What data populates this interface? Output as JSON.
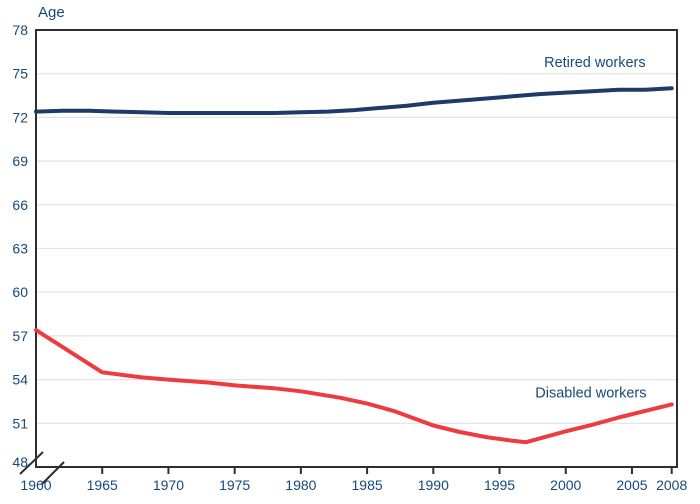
{
  "colors": {
    "text": "#17497a",
    "frame": "#2e2e2e",
    "grid": "#e3e3e3",
    "background": "#ffffff",
    "retired_line": "#1f3a68",
    "disabled_line": "#ee3b40"
  },
  "chart_data": {
    "type": "line",
    "title": "",
    "ylabel": "Age",
    "xlabel": "",
    "xlim": [
      1960,
      2008.4
    ],
    "ylim": [
      48,
      78
    ],
    "x_ticks": [
      1960,
      1965,
      1970,
      1975,
      1980,
      1985,
      1990,
      1995,
      2000,
      2005,
      2008
    ],
    "x_ticks_without_mark": [
      1960
    ],
    "y_ticks": [
      48,
      51,
      54,
      57,
      60,
      63,
      66,
      69,
      72,
      75,
      78
    ],
    "grid": "horizontal",
    "axis_break_at_origin": true,
    "legend_position": "inline-labels",
    "series": [
      {
        "name": "Retired workers",
        "color_key": "retired_line",
        "label_anchor": {
          "x": 2002.2,
          "y": 75.8
        },
        "points": [
          [
            1960,
            72.4
          ],
          [
            1962,
            72.45
          ],
          [
            1964,
            72.45
          ],
          [
            1966,
            72.4
          ],
          [
            1968,
            72.35
          ],
          [
            1970,
            72.3
          ],
          [
            1972,
            72.3
          ],
          [
            1974,
            72.3
          ],
          [
            1976,
            72.3
          ],
          [
            1978,
            72.3
          ],
          [
            1980,
            72.35
          ],
          [
            1982,
            72.4
          ],
          [
            1984,
            72.5
          ],
          [
            1986,
            72.65
          ],
          [
            1988,
            72.8
          ],
          [
            1990,
            73.0
          ],
          [
            1992,
            73.15
          ],
          [
            1994,
            73.3
          ],
          [
            1996,
            73.45
          ],
          [
            1998,
            73.6
          ],
          [
            2000,
            73.7
          ],
          [
            2002,
            73.8
          ],
          [
            2004,
            73.9
          ],
          [
            2006,
            73.9
          ],
          [
            2007,
            73.95
          ],
          [
            2008,
            74.0
          ]
        ]
      },
      {
        "name": "Disabled workers",
        "color_key": "disabled_line",
        "label_anchor": {
          "x": 2001.9,
          "y": 53.1
        },
        "points": [
          [
            1960,
            57.4
          ],
          [
            1965,
            54.5
          ],
          [
            1968,
            54.15
          ],
          [
            1970,
            54.0
          ],
          [
            1973,
            53.8
          ],
          [
            1975,
            53.6
          ],
          [
            1978,
            53.4
          ],
          [
            1980,
            53.2
          ],
          [
            1983,
            52.75
          ],
          [
            1985,
            52.35
          ],
          [
            1987,
            51.85
          ],
          [
            1990,
            50.85
          ],
          [
            1992,
            50.4
          ],
          [
            1994,
            50.05
          ],
          [
            1996,
            49.8
          ],
          [
            1997,
            49.7
          ],
          [
            1998,
            49.95
          ],
          [
            2000,
            50.45
          ],
          [
            2002,
            50.9
          ],
          [
            2004,
            51.4
          ],
          [
            2006,
            51.85
          ],
          [
            2008,
            52.3
          ]
        ]
      }
    ]
  }
}
